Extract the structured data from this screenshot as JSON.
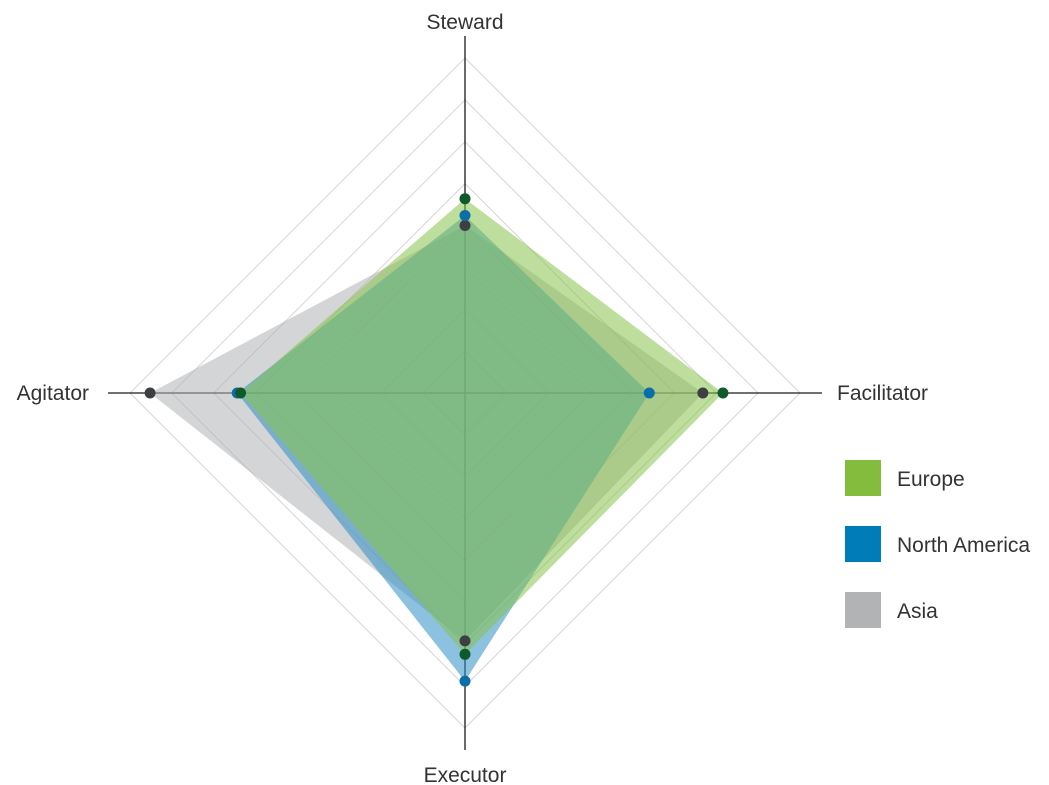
{
  "chart_data": {
    "type": "radar",
    "title": "",
    "axes": [
      "Steward",
      "Facilitator",
      "Executor",
      "Agitator"
    ],
    "range": [
      0,
      100
    ],
    "grid_levels": 8,
    "grid": true,
    "legend_position": "right",
    "series": [
      {
        "name": "Asia",
        "color": "#b0b3b4",
        "marker_color": "#3d3f42",
        "values": [
          50,
          71,
          74,
          94
        ]
      },
      {
        "name": "North America",
        "color": "#2e8fc4",
        "marker_color": "#0a6fa8",
        "values": [
          53,
          55,
          86,
          68
        ]
      },
      {
        "name": "Europe",
        "color": "#86c34a",
        "marker_color": "#0e5a2a",
        "values": [
          58,
          77,
          78,
          67
        ]
      }
    ],
    "legend": [
      {
        "label": "Europe",
        "color": "#84bd3e"
      },
      {
        "label": "North America",
        "color": "#007cb8"
      },
      {
        "label": "Asia",
        "color": "#b1b3b4"
      }
    ]
  }
}
